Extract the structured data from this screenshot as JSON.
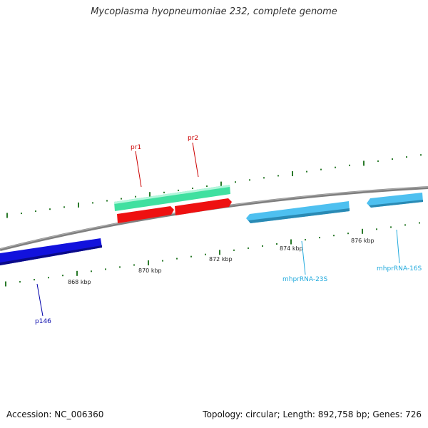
{
  "title": "Mycoplasma hyopneumoniae 232, complete genome",
  "footer": {
    "accession": "Accession: NC_006360",
    "info": "Topology: circular; Length: 892,758 bp; Genes: 726"
  },
  "colors": {
    "backbone": "#808080",
    "tick": "#2a7a2a",
    "promoter_band": "#40e0a0",
    "promoter_arrow": "#ee1111",
    "promoter_label": "#cc0000",
    "cds": "#1212dd",
    "cds_label": "#0000aa",
    "rrna": "#4ec0f0",
    "rrna_label": "#22aadd"
  },
  "scale": {
    "labels": [
      "868 kbp",
      "870 kbp",
      "872 kbp",
      "874 kbp",
      "876 kbp"
    ]
  },
  "features": {
    "promoters": [
      "pr1",
      "pr2"
    ],
    "cds": [
      "p146"
    ],
    "rrna": [
      "mhprRNA-23S",
      "mhprRNA-16S"
    ]
  }
}
